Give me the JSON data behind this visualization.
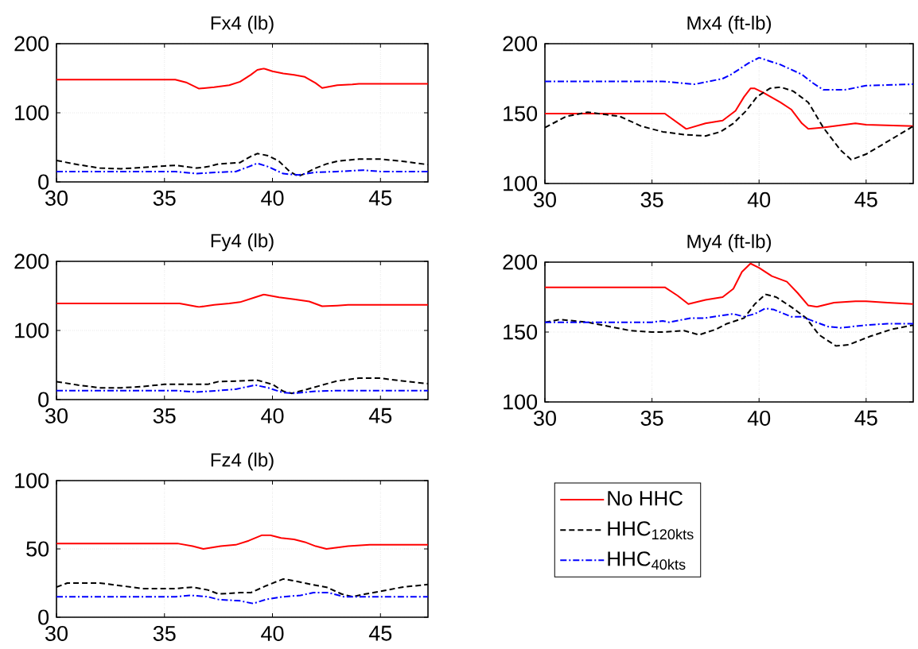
{
  "chart_data": [
    {
      "type": "line",
      "title": "Fx4 (lb)",
      "xlim": [
        30,
        47.2
      ],
      "ylim": [
        0,
        200
      ],
      "xticks": [
        30,
        35,
        40,
        45
      ],
      "yticks": [
        0,
        100,
        200
      ],
      "grid": true,
      "legend": false,
      "series": [
        {
          "color": "#ff0000",
          "line_style": "solid",
          "x": [
            30,
            35.5,
            36,
            36.6,
            37.3,
            38,
            38.5,
            39,
            39.3,
            39.6,
            40,
            40.5,
            41,
            41.5,
            42,
            42.3,
            43,
            43.7,
            44,
            47.2
          ],
          "values": [
            148,
            148,
            144,
            135,
            137,
            140,
            145,
            155,
            162,
            164,
            160,
            157,
            155,
            152,
            143,
            136,
            140,
            141,
            142,
            142
          ]
        },
        {
          "color": "#000000",
          "line_style": "dashed",
          "x": [
            30,
            31,
            32,
            33,
            34,
            35,
            35.5,
            36.5,
            37,
            37.5,
            38.5,
            39,
            39.3,
            39.8,
            40.3,
            40.8,
            41.2,
            41.5,
            42,
            42.5,
            43,
            44,
            45,
            46,
            47.2
          ],
          "values": [
            31,
            25,
            20,
            19,
            21,
            23,
            24,
            20,
            22,
            26,
            28,
            37,
            41,
            38,
            30,
            15,
            8,
            12,
            20,
            26,
            30,
            33,
            33,
            30,
            25
          ]
        },
        {
          "color": "#0000ff",
          "line_style": "dashdot",
          "x": [
            30,
            35.5,
            36.5,
            37.5,
            38.3,
            38.9,
            39.3,
            39.8,
            40.5,
            41.2,
            42,
            43,
            44.2,
            45,
            47.2
          ],
          "values": [
            15,
            15,
            12,
            14,
            15,
            22,
            27,
            22,
            12,
            10,
            14,
            15,
            17,
            15,
            15
          ]
        }
      ]
    },
    {
      "type": "line",
      "title": "Mx4 (ft-lb)",
      "xlim": [
        30,
        47.2
      ],
      "ylim": [
        100,
        200
      ],
      "xticks": [
        30,
        35,
        40,
        45
      ],
      "yticks": [
        100,
        150,
        200
      ],
      "grid": true,
      "legend": false,
      "series": [
        {
          "color": "#ff0000",
          "line_style": "solid",
          "x": [
            30,
            35.6,
            36.6,
            37.5,
            38.3,
            38.9,
            39.3,
            39.6,
            39.8,
            40.2,
            41,
            41.5,
            42,
            42.3,
            43,
            44,
            44.5,
            45,
            47.2
          ],
          "values": [
            150,
            150,
            139,
            143,
            145,
            152,
            162,
            168,
            168,
            165,
            158,
            153,
            143,
            139,
            140,
            142,
            143,
            142,
            141
          ]
        },
        {
          "color": "#000000",
          "line_style": "dashed",
          "x": [
            30,
            31,
            32,
            33.5,
            34.5,
            35.5,
            36.5,
            37.5,
            38.2,
            38.8,
            39.4,
            39.9,
            40.5,
            41,
            41.6,
            42.3,
            43,
            43.8,
            44.3,
            45,
            46,
            47.2
          ],
          "values": [
            140,
            148,
            151,
            148,
            141,
            137,
            135,
            134,
            137,
            143,
            152,
            162,
            168,
            169,
            166,
            158,
            140,
            124,
            117,
            121,
            130,
            141
          ]
        },
        {
          "color": "#0000ff",
          "line_style": "dashdot",
          "x": [
            30,
            35.5,
            37,
            38.3,
            38.7,
            39.5,
            40,
            41,
            42,
            42.5,
            43,
            44,
            45,
            47.2
          ],
          "values": [
            173,
            173,
            171,
            175,
            178,
            186,
            190,
            185,
            178,
            172,
            167,
            167,
            170,
            171
          ]
        }
      ]
    },
    {
      "type": "line",
      "title": "Fy4 (lb)",
      "xlim": [
        30,
        47.2
      ],
      "ylim": [
        0,
        200
      ],
      "xticks": [
        30,
        35,
        40,
        45
      ],
      "yticks": [
        0,
        100,
        200
      ],
      "grid": true,
      "legend": false,
      "series": [
        {
          "color": "#ff0000",
          "line_style": "solid",
          "x": [
            30,
            35.7,
            36.6,
            37.3,
            38,
            38.5,
            39.2,
            39.6,
            40.3,
            41,
            41.7,
            42.3,
            43,
            43.5,
            47.2
          ],
          "values": [
            139,
            139,
            134,
            137,
            139,
            141,
            148,
            152,
            148,
            145,
            142,
            135,
            136,
            137,
            137
          ]
        },
        {
          "color": "#000000",
          "line_style": "dashed",
          "x": [
            30,
            31,
            32,
            33,
            34,
            35,
            36.2,
            37,
            37.5,
            38.5,
            39.3,
            40,
            40.5,
            40.9,
            41.5,
            42.3,
            43,
            44,
            45,
            46,
            47.2
          ],
          "values": [
            26,
            21,
            17,
            17,
            19,
            22,
            22,
            22,
            26,
            27,
            28,
            22,
            12,
            9,
            14,
            21,
            27,
            31,
            31,
            27,
            23
          ]
        },
        {
          "color": "#0000ff",
          "line_style": "dashdot",
          "x": [
            30,
            35.5,
            36.5,
            37.5,
            38.3,
            39.2,
            39.8,
            40.5,
            41,
            42,
            43,
            47.2
          ],
          "values": [
            13,
            13,
            11,
            13,
            15,
            21,
            17,
            10,
            9,
            12,
            13,
            13
          ]
        }
      ]
    },
    {
      "type": "line",
      "title": "My4 (ft-lb)",
      "xlim": [
        30,
        47.2
      ],
      "ylim": [
        100,
        200
      ],
      "xticks": [
        30,
        35,
        40,
        45
      ],
      "yticks": [
        100,
        150,
        200
      ],
      "grid": true,
      "legend": false,
      "series": [
        {
          "color": "#ff0000",
          "line_style": "solid",
          "x": [
            30,
            35.6,
            36.2,
            36.7,
            37.5,
            38.3,
            38.8,
            39.2,
            39.6,
            40,
            40.6,
            41.3,
            41.8,
            42.3,
            42.7,
            43.5,
            44.5,
            45,
            46,
            47.2
          ],
          "values": [
            182,
            182,
            176,
            170,
            173,
            175,
            181,
            193,
            199,
            196,
            190,
            186,
            178,
            169,
            168,
            171,
            172,
            172,
            171,
            170
          ]
        },
        {
          "color": "#000000",
          "line_style": "dashed",
          "x": [
            30,
            30.7,
            32,
            33,
            34,
            35,
            35.5,
            36.5,
            37.2,
            38,
            38.5,
            39.3,
            39.8,
            40.3,
            40.8,
            41.5,
            42.2,
            42.8,
            43.6,
            44.2,
            45.2,
            46.2,
            47.2
          ],
          "values": [
            157,
            159,
            157,
            154,
            151,
            150,
            150,
            151,
            148,
            152,
            156,
            160,
            170,
            177,
            175,
            168,
            160,
            148,
            140,
            141,
            147,
            152,
            155
          ]
        },
        {
          "color": "#0000ff",
          "line_style": "dashdot",
          "x": [
            30,
            35,
            35.5,
            35.8,
            36.8,
            37.5,
            38.3,
            38.8,
            39.3,
            39.8,
            40.3,
            40.7,
            41.5,
            42,
            42.5,
            43.2,
            43.8,
            45,
            46,
            47.2
          ],
          "values": [
            157,
            157,
            158,
            157,
            160,
            160,
            162,
            163,
            161,
            163,
            167,
            166,
            161,
            161,
            158,
            154,
            153,
            155,
            156,
            156
          ]
        }
      ]
    },
    {
      "type": "line",
      "title": "Fz4 (lb)",
      "xlim": [
        30,
        47.2
      ],
      "ylim": [
        0,
        100
      ],
      "xticks": [
        30,
        35,
        40,
        45
      ],
      "yticks": [
        0,
        50,
        100
      ],
      "grid": true,
      "legend": "right",
      "series": [
        {
          "name": "No HHC",
          "color": "#ff0000",
          "line_style": "solid",
          "x": [
            30,
            35.6,
            36.3,
            36.8,
            37.6,
            38.3,
            38.9,
            39.5,
            39.9,
            40.4,
            41,
            41.5,
            42,
            42.5,
            43,
            43.5,
            44.5,
            47.2
          ],
          "values": [
            54,
            54,
            52,
            50,
            52,
            53,
            56,
            60,
            60,
            58,
            57,
            55,
            52,
            50,
            51,
            52,
            53,
            53
          ]
        },
        {
          "name": "HHC$_{120kts}$",
          "color": "#000000",
          "line_style": "dashed",
          "x": [
            30,
            30.5,
            32,
            33,
            34,
            35.5,
            36.3,
            37,
            37.5,
            38.5,
            39,
            39.7,
            40.5,
            41.2,
            41.8,
            42.5,
            43.2,
            43.7,
            44.3,
            45,
            46,
            47.2
          ],
          "values": [
            22,
            25,
            25,
            23,
            21,
            21,
            22,
            20,
            17,
            18,
            18,
            23,
            28,
            26,
            24,
            22,
            17,
            15,
            17,
            19,
            22,
            24
          ]
        },
        {
          "name": "HHC$_{40kts}$",
          "color": "#0000ff",
          "line_style": "dashdot",
          "x": [
            30,
            35.5,
            36.2,
            37,
            37.5,
            38.5,
            39.1,
            39.7,
            40.5,
            41.3,
            41.9,
            42.6,
            43.3,
            47.2
          ],
          "values": [
            15,
            15,
            16,
            15,
            13,
            12,
            10,
            13,
            15,
            16,
            18,
            18,
            15,
            15
          ]
        }
      ]
    }
  ]
}
